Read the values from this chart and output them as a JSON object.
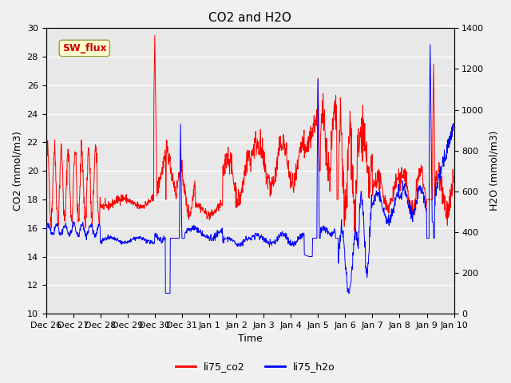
{
  "title": "CO2 and H2O",
  "xlabel": "Time",
  "ylabel_left": "CO2 (mmol/m3)",
  "ylabel_right": "H2O (mmol/m3)",
  "ylim_left": [
    10,
    30
  ],
  "ylim_right": [
    0,
    1400
  ],
  "yticks_left": [
    10,
    12,
    14,
    16,
    18,
    20,
    22,
    24,
    26,
    28,
    30
  ],
  "yticks_right": [
    0,
    200,
    400,
    600,
    800,
    1000,
    1200,
    1400
  ],
  "background_color": "#e8e8e8",
  "grid_color": "#ffffff",
  "annotation_text": "SW_flux",
  "annotation_color": "#cc0000",
  "annotation_bg": "#ffffcc",
  "line_co2_color": "red",
  "line_h2o_color": "blue",
  "legend_labels": [
    "li75_co2",
    "li75_h2o"
  ],
  "title_fontsize": 11,
  "axis_label_fontsize": 9,
  "tick_fontsize": 8
}
